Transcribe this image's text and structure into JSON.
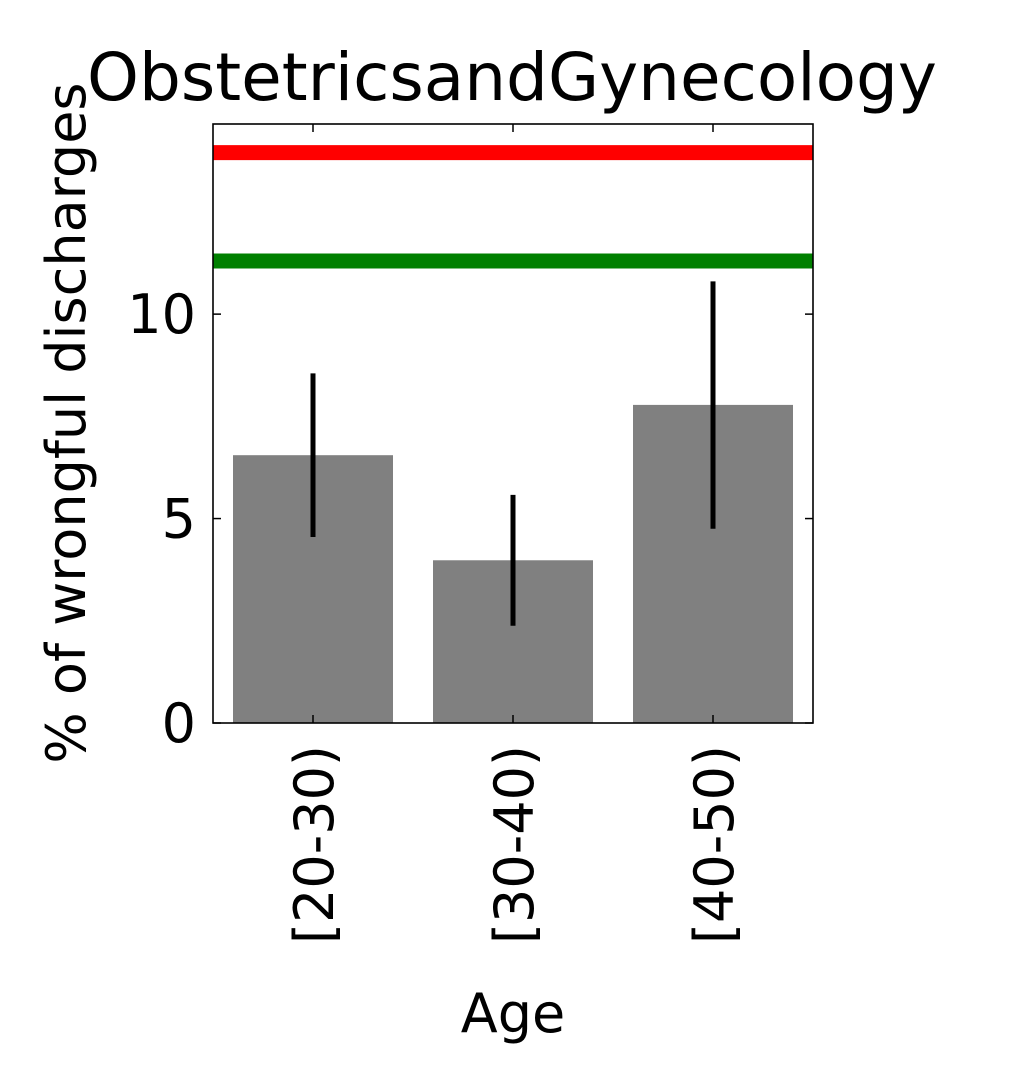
{
  "chart_data": {
    "type": "bar",
    "title": "ObstetricsandGynecology",
    "xlabel": "Age",
    "ylabel": "% of wrongful discharges",
    "categories": [
      "[20-30)",
      "[30-40)",
      "[40-50)"
    ],
    "values": [
      6.55,
      3.98,
      7.78
    ],
    "error_low": [
      4.55,
      2.38,
      4.75
    ],
    "error_high": [
      8.55,
      5.58,
      10.8
    ],
    "ylim": [
      0,
      14.65
    ],
    "yticks": [
      0,
      5,
      10
    ],
    "reference_lines": [
      {
        "value": 13.95,
        "color": "#ff0000"
      },
      {
        "value": 11.3,
        "color": "#008000"
      }
    ],
    "bar_color": "#808080",
    "grid": false,
    "legend": "none"
  }
}
